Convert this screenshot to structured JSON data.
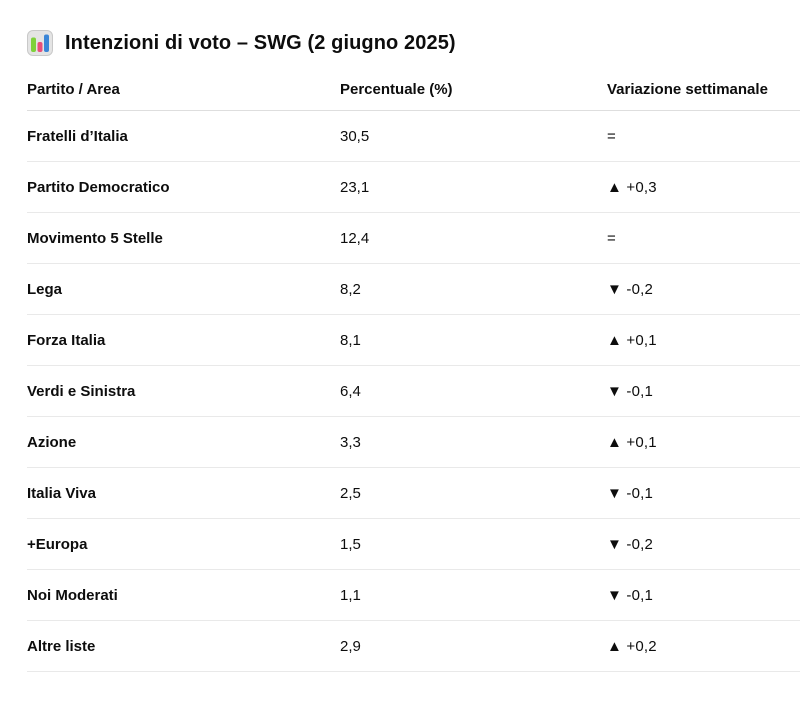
{
  "title": {
    "icon": "bar-chart-emoji",
    "text": "Intenzioni di voto – SWG (2 giugno 2025)"
  },
  "table": {
    "columns": [
      "Partito / Area",
      "Percentuale (%)",
      "Variazione settimanale"
    ],
    "rows": [
      {
        "party": "Fratelli d’Italia",
        "percent": "30,5",
        "variation": "="
      },
      {
        "party": "Partito Democratico",
        "percent": "23,1",
        "variation": "▲ +0,3"
      },
      {
        "party": "Movimento 5 Stelle",
        "percent": "12,4",
        "variation": "="
      },
      {
        "party": "Lega",
        "percent": "8,2",
        "variation": "▼ -0,2"
      },
      {
        "party": "Forza Italia",
        "percent": "8,1",
        "variation": "▲ +0,1"
      },
      {
        "party": "Verdi e Sinistra",
        "percent": "6,4",
        "variation": "▼ -0,1"
      },
      {
        "party": "Azione",
        "percent": "3,3",
        "variation": "▲ +0,1"
      },
      {
        "party": "Italia Viva",
        "percent": "2,5",
        "variation": "▼ -0,1"
      },
      {
        "party": "+Europa",
        "percent": "1,5",
        "variation": "▼ -0,2"
      },
      {
        "party": "Noi Moderati",
        "percent": "1,1",
        "variation": "▼ -0,1"
      },
      {
        "party": "Altre liste",
        "percent": "2,9",
        "variation": "▲ +0,2"
      }
    ]
  },
  "colors": {
    "text": "#0d0d0d",
    "header_border": "#dedede",
    "row_border": "#e9e9e9",
    "emoji_bg": "#e4e4e4",
    "emoji_border": "#c9c9c9",
    "emoji_bar_green": "#7fd13b",
    "emoji_bar_pink": "#ea4e79",
    "emoji_bar_blue": "#3b86d7"
  }
}
